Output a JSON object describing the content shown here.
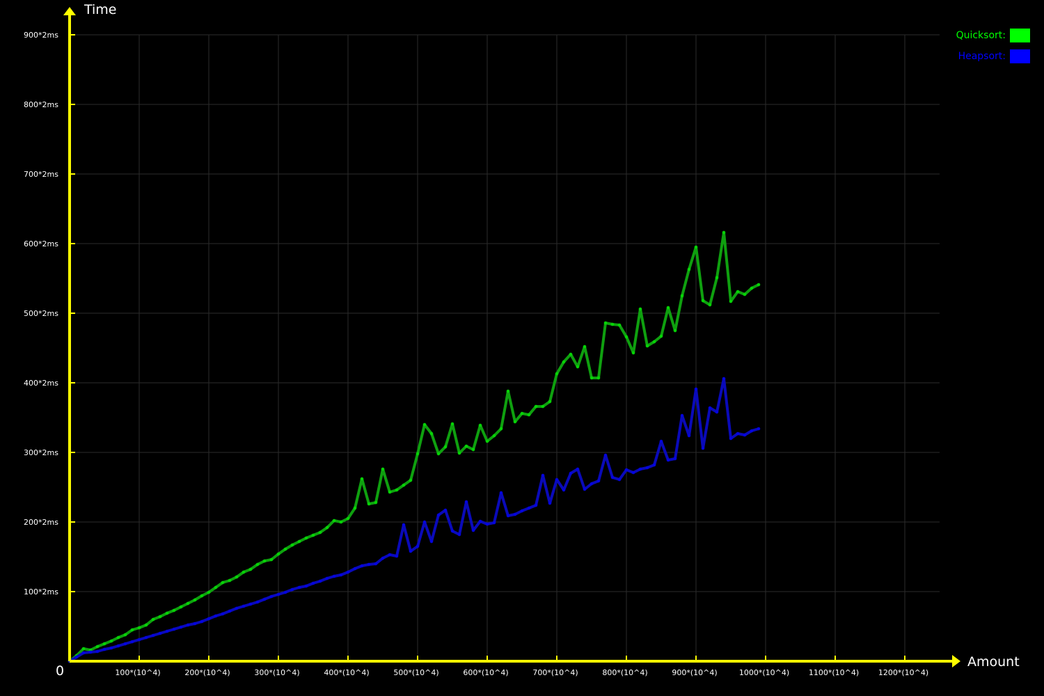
{
  "chart_data": {
    "type": "line",
    "title": "",
    "ylabel": "Time",
    "xlabel": "Amount",
    "origin_label": "0",
    "xlim": [
      0,
      1250
    ],
    "ylim": [
      0,
      900
    ],
    "grid": true,
    "legend_position": "top-right",
    "y_ticks": [
      {
        "value": 100,
        "label": "100*2ms"
      },
      {
        "value": 200,
        "label": "200*2ms"
      },
      {
        "value": 300,
        "label": "300*2ms"
      },
      {
        "value": 400,
        "label": "400*2ms"
      },
      {
        "value": 500,
        "label": "500*2ms"
      },
      {
        "value": 600,
        "label": "600*2ms"
      },
      {
        "value": 700,
        "label": "700*2ms"
      },
      {
        "value": 800,
        "label": "800*2ms"
      },
      {
        "value": 900,
        "label": "900*2ms"
      }
    ],
    "x_ticks": [
      {
        "value": 100,
        "label": "100*(10^4)"
      },
      {
        "value": 200,
        "label": "200*(10^4)"
      },
      {
        "value": 300,
        "label": "300*(10^4)"
      },
      {
        "value": 400,
        "label": "400*(10^4)"
      },
      {
        "value": 500,
        "label": "500*(10^4)"
      },
      {
        "value": 600,
        "label": "600*(10^4)"
      },
      {
        "value": 700,
        "label": "700*(10^4)"
      },
      {
        "value": 800,
        "label": "800*(10^4)"
      },
      {
        "value": 900,
        "label": "900*(10^4)"
      },
      {
        "value": 1000,
        "label": "1000*(10^4)"
      },
      {
        "value": 1100,
        "label": "1100*(10^4)"
      },
      {
        "value": 1200,
        "label": "1200*(10^4)"
      }
    ],
    "x": [
      0,
      10,
      20,
      30,
      40,
      50,
      60,
      70,
      80,
      90,
      100,
      110,
      120,
      130,
      140,
      150,
      160,
      170,
      180,
      190,
      200,
      210,
      220,
      230,
      240,
      250,
      260,
      270,
      280,
      290,
      300,
      310,
      320,
      330,
      340,
      350,
      360,
      370,
      380,
      390,
      400,
      410,
      420,
      430,
      440,
      450,
      460,
      470,
      480,
      490,
      500,
      510,
      520,
      530,
      540,
      550,
      560,
      570,
      580,
      590,
      600,
      610,
      620,
      630,
      640,
      650,
      660,
      670,
      680,
      690,
      700,
      710,
      720,
      730,
      740,
      750,
      760,
      770,
      780,
      790,
      800,
      810,
      820,
      830,
      840,
      850,
      860,
      870,
      880,
      890,
      900,
      910,
      920,
      930,
      940,
      950,
      960,
      970,
      980,
      990
    ],
    "series": [
      {
        "name": "Quicksort:",
        "color": "#00ff00",
        "line_color": "#0fa00f",
        "values": [
          0,
          8,
          18,
          16,
          21,
          25,
          29,
          34,
          38,
          45,
          48,
          52,
          60,
          64,
          69,
          73,
          78,
          83,
          88,
          94,
          99,
          106,
          113,
          116,
          121,
          128,
          132,
          139,
          144,
          146,
          154,
          161,
          167,
          172,
          177,
          181,
          185,
          192,
          202,
          200,
          205,
          220,
          262,
          226,
          228,
          276,
          243,
          246,
          253,
          260,
          298,
          340,
          327,
          298,
          308,
          341,
          299,
          309,
          304,
          339,
          316,
          324,
          334,
          388,
          344,
          356,
          354,
          366,
          366,
          373,
          413,
          430,
          441,
          423,
          452,
          407,
          407,
          486,
          484,
          483,
          466,
          443,
          506,
          453,
          459,
          467,
          508,
          475,
          525,
          563,
          595,
          518,
          512,
          551,
          616,
          517,
          531,
          527,
          536,
          541
        ]
      },
      {
        "name": "Heapsort:",
        "color": "#0000ff",
        "line_color": "#0a0ab9",
        "values": [
          0,
          6,
          12,
          13,
          14,
          17,
          19,
          22,
          25,
          28,
          31,
          34,
          37,
          40,
          43,
          46,
          49,
          52,
          54,
          57,
          61,
          65,
          68,
          72,
          76,
          79,
          82,
          85,
          89,
          93,
          96,
          99,
          103,
          106,
          108,
          112,
          115,
          119,
          122,
          124,
          128,
          133,
          137,
          139,
          140,
          148,
          153,
          151,
          196,
          158,
          165,
          200,
          172,
          210,
          217,
          187,
          182,
          229,
          188,
          201,
          197,
          199,
          242,
          209,
          211,
          216,
          220,
          224,
          267,
          227,
          261,
          246,
          270,
          276,
          247,
          255,
          259,
          296,
          264,
          261,
          275,
          271,
          276,
          278,
          282,
          316,
          289,
          291,
          353,
          324,
          391,
          306,
          364,
          358,
          406,
          320,
          327,
          325,
          331,
          334
        ]
      }
    ]
  }
}
